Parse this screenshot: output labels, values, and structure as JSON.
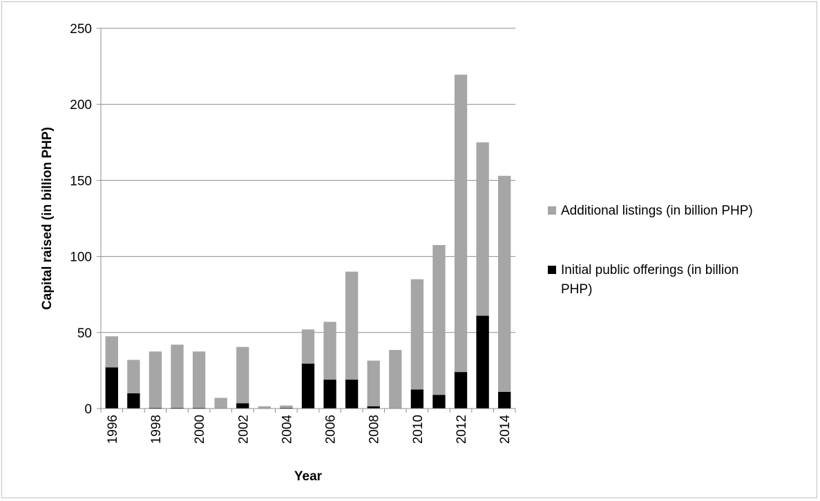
{
  "chart_data": {
    "type": "bar",
    "stacked": true,
    "title": "",
    "xlabel": "Year",
    "ylabel": "Capital raised (in billion PHP)",
    "ylim": [
      0,
      250
    ],
    "yticks": [
      0,
      50,
      100,
      150,
      200,
      250
    ],
    "grid": true,
    "legend_position": "right",
    "categories": [
      "1996",
      "1997",
      "1998",
      "1999",
      "2000",
      "2001",
      "2002",
      "2003",
      "2004",
      "2005",
      "2006",
      "2007",
      "2008",
      "2009",
      "2010",
      "2011",
      "2012",
      "2013",
      "2014"
    ],
    "x_tick_labels": [
      "1996",
      "",
      "1998",
      "",
      "2000",
      "",
      "2002",
      "",
      "2004",
      "",
      "2006",
      "",
      "2008",
      "",
      "2010",
      "",
      "2012",
      "",
      "2014"
    ],
    "series": [
      {
        "name": "Initial public offerings (in billion PHP)",
        "color": "#000000",
        "values": [
          27,
          10,
          0.5,
          0.5,
          0.5,
          0,
          3.5,
          0,
          0.5,
          29.5,
          19,
          19,
          1.5,
          0,
          12.5,
          9,
          24,
          61,
          11
        ]
      },
      {
        "name": "Additional listings (in billion PHP)",
        "color": "#a6a6a6",
        "values": [
          20.5,
          22,
          37,
          41.5,
          37,
          7,
          37,
          1.5,
          1.5,
          22.5,
          38,
          71,
          30,
          38.5,
          72.5,
          98.5,
          195.5,
          114,
          142
        ]
      }
    ],
    "legend_order": [
      "Additional listings (in billion PHP)",
      "Initial public offerings (in billion PHP)"
    ],
    "legend_lines": [
      [
        "Additional listings (in billion PHP)"
      ],
      [
        "Initial public offerings (in billion",
        "PHP)"
      ]
    ]
  }
}
